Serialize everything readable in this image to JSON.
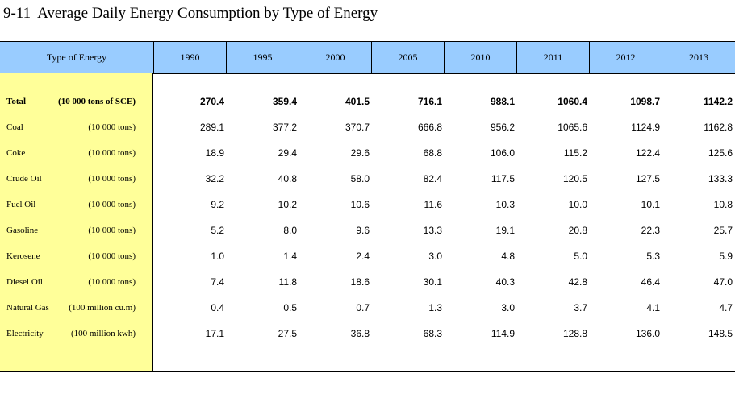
{
  "title": {
    "number": "9-11",
    "text": "Average Daily Energy Consumption by Type of Energy"
  },
  "header": {
    "label": "Type of Energy",
    "years": [
      "1990",
      "1995",
      "2000",
      "2005",
      "2010",
      "2011",
      "2012",
      "2013"
    ]
  },
  "rows": [
    {
      "name": "Total",
      "unit": "(10 000 tons of SCE)",
      "values": [
        "270.4",
        "359.4",
        "401.5",
        "716.1",
        "988.1",
        "1060.4",
        "1098.7",
        "1142.2"
      ]
    },
    {
      "name": "Coal",
      "unit": "(10 000 tons)",
      "values": [
        "289.1",
        "377.2",
        "370.7",
        "666.8",
        "956.2",
        "1065.6",
        "1124.9",
        "1162.8"
      ]
    },
    {
      "name": "Coke",
      "unit": "(10 000 tons)",
      "values": [
        "18.9",
        "29.4",
        "29.6",
        "68.8",
        "106.0",
        "115.2",
        "122.4",
        "125.6"
      ]
    },
    {
      "name": "Crude Oil",
      "unit": "(10 000 tons)",
      "values": [
        "32.2",
        "40.8",
        "58.0",
        "82.4",
        "117.5",
        "120.5",
        "127.5",
        "133.3"
      ]
    },
    {
      "name": "Fuel Oil",
      "unit": "(10 000 tons)",
      "values": [
        "9.2",
        "10.2",
        "10.6",
        "11.6",
        "10.3",
        "10.0",
        "10.1",
        "10.8"
      ]
    },
    {
      "name": "Gasoline",
      "unit": "(10 000 tons)",
      "values": [
        "5.2",
        "8.0",
        "9.6",
        "13.3",
        "19.1",
        "20.8",
        "22.3",
        "25.7"
      ]
    },
    {
      "name": "Kerosene",
      "unit": "(10 000 tons)",
      "values": [
        "1.0",
        "1.4",
        "2.4",
        "3.0",
        "4.8",
        "5.0",
        "5.3",
        "5.9"
      ]
    },
    {
      "name": "Diesel Oil",
      "unit": "(10 000 tons)",
      "values": [
        "7.4",
        "11.8",
        "18.6",
        "30.1",
        "40.3",
        "42.8",
        "46.4",
        "47.0"
      ]
    },
    {
      "name": "Natural Gas",
      "unit": "(100 million cu.m)",
      "values": [
        "0.4",
        "0.5",
        "0.7",
        "1.3",
        "3.0",
        "3.7",
        "4.1",
        "4.7"
      ]
    },
    {
      "name": "Electricity",
      "unit": "(100 million kwh)",
      "values": [
        "17.1",
        "27.5",
        "36.8",
        "68.3",
        "114.9",
        "128.8",
        "136.0",
        "148.5"
      ]
    }
  ]
}
